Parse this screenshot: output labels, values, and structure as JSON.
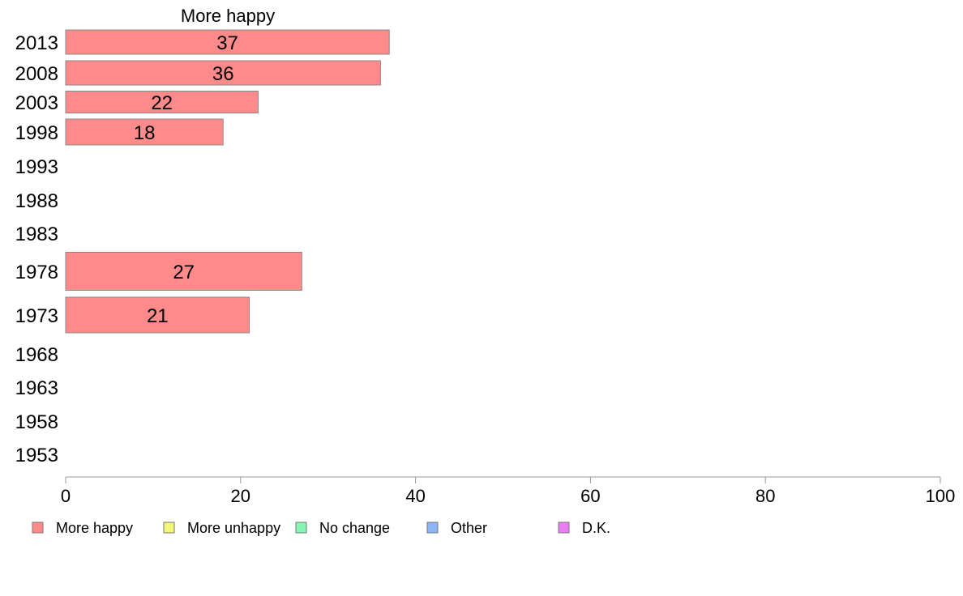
{
  "chart_data": {
    "type": "bar",
    "orientation": "horizontal",
    "title": "More happy",
    "xlabel": "",
    "ylabel": "",
    "xlim": [
      0,
      100
    ],
    "x_ticks": [
      0,
      20,
      40,
      60,
      80,
      100
    ],
    "categories": [
      "2013",
      "2008",
      "2003",
      "1998",
      "1993",
      "1988",
      "1983",
      "1978",
      "1973",
      "1968",
      "1963",
      "1958",
      "1953"
    ],
    "series": [
      {
        "name": "More happy",
        "color": "#ff8a8a",
        "values": [
          37,
          36,
          22,
          18,
          null,
          null,
          null,
          27,
          21,
          null,
          null,
          null,
          null
        ],
        "labels": [
          "37",
          "36",
          "22",
          "18",
          "",
          "",
          "",
          "27",
          "21",
          "",
          "",
          "",
          ""
        ]
      }
    ],
    "legend": {
      "placement": "bottom",
      "items": [
        {
          "label": "More happy",
          "color": "#ff8a8a"
        },
        {
          "label": "More unhappy",
          "color": "#f2f77a"
        },
        {
          "label": "No change",
          "color": "#85f7b4"
        },
        {
          "label": "Other",
          "color": "#8ab6f7"
        },
        {
          "label": "D.K.",
          "color": "#ec7cf2"
        }
      ]
    },
    "grid": false
  }
}
